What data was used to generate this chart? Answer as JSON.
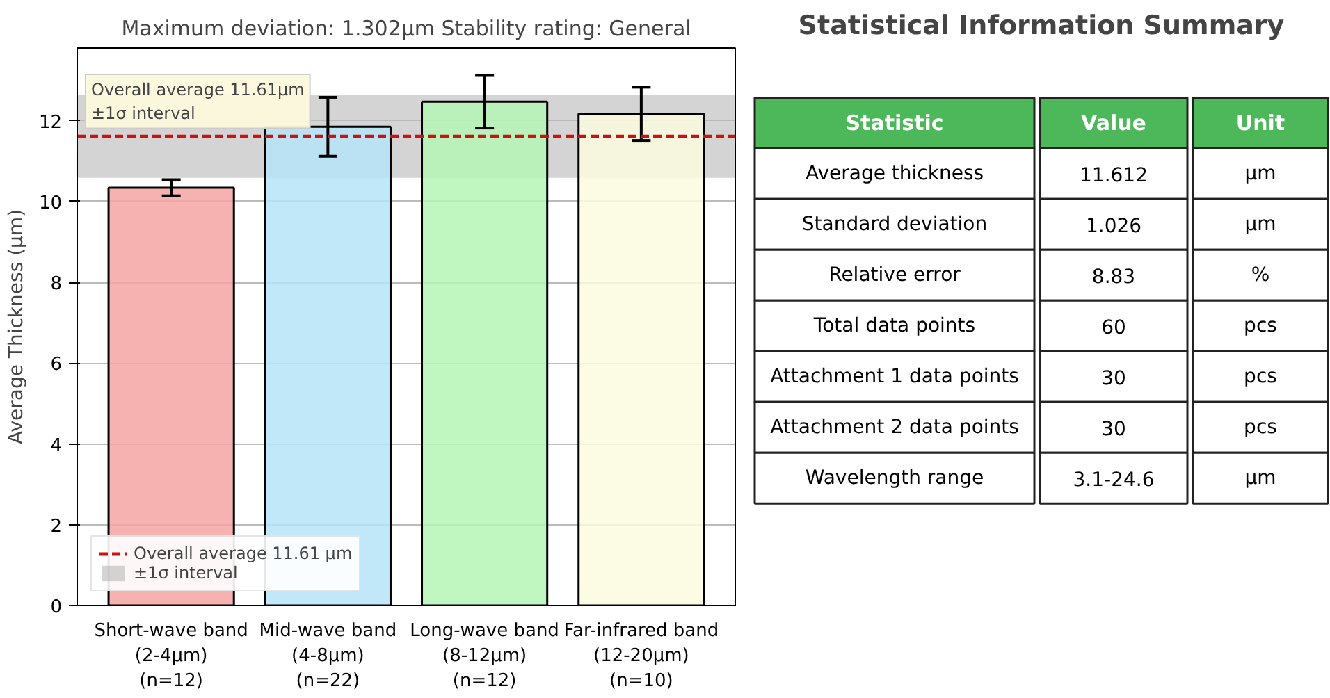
{
  "chart_data": [
    {
      "type": "bar",
      "title": "Maximum deviation: 1.302μm Stability rating: General",
      "ylabel": "Average Thickness (μm)",
      "categories": [
        "Short-wave band\n(2-4μm)\n(n=12)",
        "Mid-wave band\n(4-8μm)\n(n=22)",
        "Long-wave band\n(8-12μm)\n(n=12)",
        "Far-infrared band\n(12-20μm)\n(n=10)"
      ],
      "values": [
        10.34,
        11.85,
        12.47,
        12.17
      ],
      "errors": [
        0.2,
        0.73,
        0.65,
        0.66
      ],
      "colors": [
        "#f4a3a3",
        "#b5e4f7",
        "#b5f5b5",
        "#fbfbe0"
      ],
      "ylim": [
        0,
        13.8
      ],
      "yticks": [
        0,
        2,
        4,
        6,
        8,
        10,
        12
      ],
      "grid": "y",
      "legend": "bottom left",
      "ref_lines": [
        {
          "axis": "y",
          "value": 11.61,
          "label": "Overall average 11.61 μm",
          "color": "#cc1111",
          "line_style": "dashed"
        }
      ],
      "bands": [
        {
          "axis": "y",
          "from": 10.586,
          "to": 12.638,
          "label": "±1σ interval",
          "color": "#b8b8b8"
        }
      ],
      "annotations": [
        "Overall average 11.61μm\n±1σ interval"
      ]
    },
    {
      "type": "other",
      "title": "Statistical Information Summary",
      "categories": [
        "Statistic",
        "Value",
        "Unit"
      ],
      "annotations": [
        "Average thickness",
        "11.612",
        "μm",
        "Standard deviation",
        "1.026",
        "μm",
        "Relative error",
        "8.83",
        "%",
        "Total data points",
        "60",
        "pcs",
        "Attachment 1 data points",
        "30",
        "pcs",
        "Attachment 2 data points",
        "30",
        "pcs",
        "Wavelength range",
        "3.1-24.6",
        "μm"
      ]
    }
  ]
}
